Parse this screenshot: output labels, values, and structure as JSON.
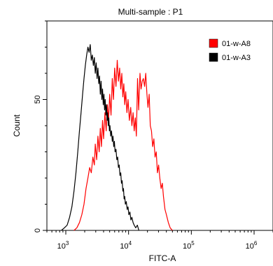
{
  "chart_data": {
    "type": "histogram",
    "title": "Multi-sample : P1",
    "xlabel": "FITC-A",
    "ylabel": "Count",
    "x_scale": "log",
    "xlim": [
      500,
      2000000
    ],
    "ylim": [
      0,
      80
    ],
    "x_ticks": [
      {
        "value": 1000,
        "base": "10",
        "exp": "3"
      },
      {
        "value": 10000,
        "base": "10",
        "exp": "4"
      },
      {
        "value": 100000,
        "base": "10",
        "exp": "5"
      },
      {
        "value": 1000000,
        "base": "10",
        "exp": "6"
      }
    ],
    "y_ticks": [
      0,
      50
    ],
    "legend": {
      "position": "top-right"
    },
    "series": [
      {
        "name": "01-w-A8",
        "color": "#ff0000",
        "points": [
          [
            1350,
            0
          ],
          [
            1500,
            1
          ],
          [
            1650,
            3
          ],
          [
            1800,
            6
          ],
          [
            1950,
            10
          ],
          [
            2100,
            16
          ],
          [
            2250,
            20
          ],
          [
            2400,
            24
          ],
          [
            2550,
            22
          ],
          [
            2700,
            28
          ],
          [
            2850,
            25
          ],
          [
            2950,
            33
          ],
          [
            3100,
            27
          ],
          [
            3250,
            36
          ],
          [
            3400,
            30
          ],
          [
            3550,
            39
          ],
          [
            3700,
            32
          ],
          [
            3850,
            42
          ],
          [
            4000,
            35
          ],
          [
            4200,
            45
          ],
          [
            4400,
            38
          ],
          [
            4600,
            48
          ],
          [
            4800,
            42
          ],
          [
            5000,
            52
          ],
          [
            5250,
            44
          ],
          [
            5500,
            58
          ],
          [
            5750,
            50
          ],
          [
            6000,
            62
          ],
          [
            6300,
            55
          ],
          [
            6600,
            65
          ],
          [
            6900,
            57
          ],
          [
            7200,
            62
          ],
          [
            7500,
            54
          ],
          [
            7800,
            60
          ],
          [
            8100,
            51
          ],
          [
            8400,
            56
          ],
          [
            8700,
            48
          ],
          [
            9000,
            53
          ],
          [
            9400,
            45
          ],
          [
            9800,
            50
          ],
          [
            10300,
            42
          ],
          [
            10800,
            47
          ],
          [
            11300,
            40
          ],
          [
            11800,
            45
          ],
          [
            12300,
            38
          ],
          [
            12800,
            43
          ],
          [
            13300,
            36
          ],
          [
            13900,
            58
          ],
          [
            14500,
            46
          ],
          [
            15200,
            60
          ],
          [
            15800,
            54
          ],
          [
            16500,
            57
          ],
          [
            17200,
            58
          ],
          [
            18000,
            55
          ],
          [
            18800,
            60
          ],
          [
            19600,
            52
          ],
          [
            20400,
            47
          ],
          [
            21300,
            52
          ],
          [
            22200,
            40
          ],
          [
            23200,
            38
          ],
          [
            24200,
            32
          ],
          [
            25300,
            35
          ],
          [
            26400,
            28
          ],
          [
            27600,
            30
          ],
          [
            28800,
            22
          ],
          [
            30100,
            25
          ],
          [
            31500,
            20
          ],
          [
            33000,
            16
          ],
          [
            34500,
            18
          ],
          [
            36000,
            13
          ],
          [
            38000,
            8
          ],
          [
            40000,
            6
          ],
          [
            43000,
            3
          ],
          [
            46000,
            1
          ],
          [
            50000,
            0
          ]
        ]
      },
      {
        "name": "01-w-A3",
        "color": "#000000",
        "points": [
          [
            850,
            0
          ],
          [
            950,
            1
          ],
          [
            1050,
            2
          ],
          [
            1150,
            5
          ],
          [
            1250,
            9
          ],
          [
            1350,
            15
          ],
          [
            1450,
            22
          ],
          [
            1550,
            30
          ],
          [
            1650,
            38
          ],
          [
            1750,
            45
          ],
          [
            1850,
            52
          ],
          [
            1950,
            58
          ],
          [
            2050,
            63
          ],
          [
            2150,
            67
          ],
          [
            2250,
            70
          ],
          [
            2350,
            68
          ],
          [
            2450,
            71
          ],
          [
            2550,
            65
          ],
          [
            2650,
            67
          ],
          [
            2750,
            63
          ],
          [
            2850,
            66
          ],
          [
            2950,
            60
          ],
          [
            3050,
            64
          ],
          [
            3150,
            58
          ],
          [
            3250,
            62
          ],
          [
            3350,
            56
          ],
          [
            3450,
            59
          ],
          [
            3550,
            52
          ],
          [
            3650,
            57
          ],
          [
            3750,
            50
          ],
          [
            3850,
            54
          ],
          [
            3950,
            48
          ],
          [
            4050,
            52
          ],
          [
            4150,
            46
          ],
          [
            4250,
            50
          ],
          [
            4350,
            44
          ],
          [
            4450,
            48
          ],
          [
            4550,
            42
          ],
          [
            4650,
            45
          ],
          [
            4750,
            40
          ],
          [
            4850,
            43
          ],
          [
            4950,
            38
          ],
          [
            5050,
            40
          ],
          [
            5200,
            36
          ],
          [
            5350,
            38
          ],
          [
            5500,
            34
          ],
          [
            5650,
            36
          ],
          [
            5800,
            32
          ],
          [
            5950,
            34
          ],
          [
            6100,
            30
          ],
          [
            6300,
            31
          ],
          [
            6500,
            27
          ],
          [
            6700,
            28
          ],
          [
            6900,
            24
          ],
          [
            7100,
            25
          ],
          [
            7300,
            21
          ],
          [
            7500,
            22
          ],
          [
            7700,
            18
          ],
          [
            7900,
            19
          ],
          [
            8100,
            15
          ],
          [
            8300,
            16
          ],
          [
            8500,
            12
          ],
          [
            8700,
            13
          ],
          [
            8900,
            10
          ],
          [
            9200,
            11
          ],
          [
            9500,
            8
          ],
          [
            9800,
            9
          ],
          [
            10100,
            6
          ],
          [
            10500,
            7
          ],
          [
            10900,
            4
          ],
          [
            11300,
            5
          ],
          [
            11800,
            3
          ],
          [
            12300,
            2
          ],
          [
            13000,
            1
          ],
          [
            13800,
            2
          ],
          [
            14600,
            0
          ]
        ]
      }
    ]
  }
}
